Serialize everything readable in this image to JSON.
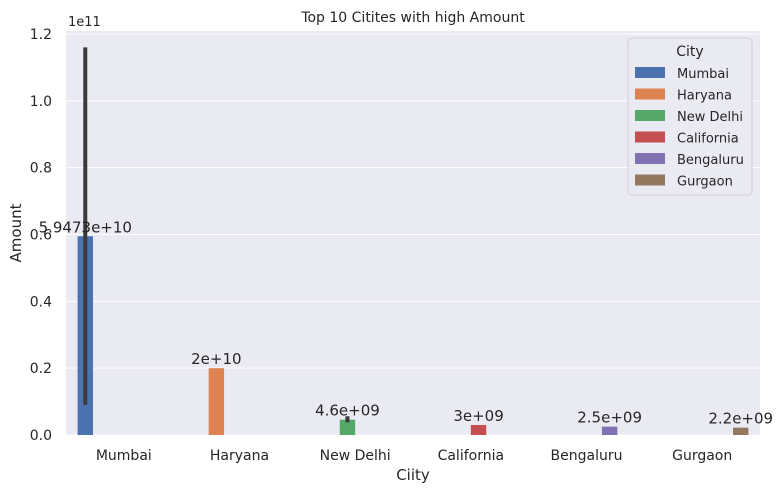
{
  "chart_data": {
    "type": "bar",
    "title": "Top 10 Citites with high Amount",
    "xlabel": "Ciity",
    "ylabel": "Amount",
    "y_offset_label": "1e11",
    "y_scale": 100000000000,
    "ylim": [
      0,
      120000000000
    ],
    "yticks": [
      {
        "value": 0,
        "label": "0.0"
      },
      {
        "value": 20000000000,
        "label": "0.2"
      },
      {
        "value": 40000000000,
        "label": "0.4"
      },
      {
        "value": 60000000000,
        "label": "0.6"
      },
      {
        "value": 80000000000,
        "label": "0.8"
      },
      {
        "value": 100000000000,
        "label": "1.0"
      },
      {
        "value": 120000000000,
        "label": "1.2"
      }
    ],
    "categories": [
      "Mumbai",
      "Haryana",
      "New Delhi",
      "California",
      "Bengaluru",
      "Gurgaon"
    ],
    "legend": {
      "title": "City",
      "position": "top-right"
    },
    "grid": true,
    "series": [
      {
        "name": "Mumbai",
        "color": "#4c72b0",
        "category": "Mumbai",
        "value": 59470000000,
        "label": "5.9473e+10",
        "err_low": 9000000000,
        "err_high": 116000000000
      },
      {
        "name": "Haryana",
        "color": "#dd8452",
        "category": "Haryana",
        "value": 20000000000,
        "label": "2e+10"
      },
      {
        "name": "New Delhi",
        "color": "#55a868",
        "category": "New Delhi",
        "value": 4600000000,
        "label": "4.6e+09",
        "err_low": 3800000000,
        "err_high": 5600000000
      },
      {
        "name": "California",
        "color": "#c44e52",
        "category": "California",
        "value": 3000000000,
        "label": "3e+09"
      },
      {
        "name": "Bengaluru",
        "color": "#8172b3",
        "category": "Bengaluru",
        "value": 2500000000,
        "label": "2.5e+09"
      },
      {
        "name": "Gurgaon",
        "color": "#937860",
        "category": "Gurgaon",
        "value": 2200000000,
        "label": "2.2e+09"
      }
    ]
  }
}
